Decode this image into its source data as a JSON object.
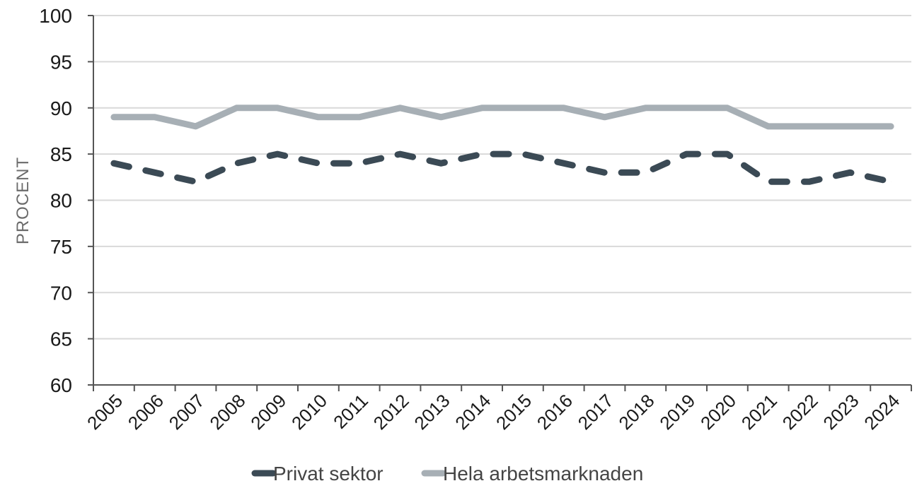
{
  "chart_data": {
    "type": "line",
    "title": "",
    "xlabel": "",
    "ylabel": "PROCENT",
    "ylim": [
      60,
      100
    ],
    "yticks": [
      60,
      65,
      70,
      75,
      80,
      85,
      90,
      95,
      100
    ],
    "grid": true,
    "legend_position": "bottom",
    "categories": [
      "2005",
      "2006",
      "2007",
      "2008",
      "2009",
      "2010",
      "2011",
      "2012",
      "2013",
      "2014",
      "2015",
      "2016",
      "2017",
      "2018",
      "2019",
      "2020",
      "2021",
      "2022",
      "2023",
      "2024"
    ],
    "series": [
      {
        "name": "Privat sektor",
        "style": "dashed",
        "color": "#3b4a55",
        "values": [
          84,
          83,
          82,
          84,
          85,
          84,
          84,
          85,
          84,
          85,
          85,
          84,
          83,
          83,
          85,
          85,
          82,
          82,
          83,
          82
        ]
      },
      {
        "name": "Hela arbetsmarknaden",
        "style": "solid",
        "color": "#a7afb5",
        "values": [
          89,
          89,
          88,
          90,
          90,
          89,
          89,
          90,
          89,
          90,
          90,
          90,
          89,
          90,
          90,
          90,
          88,
          88,
          88,
          88
        ]
      }
    ]
  }
}
